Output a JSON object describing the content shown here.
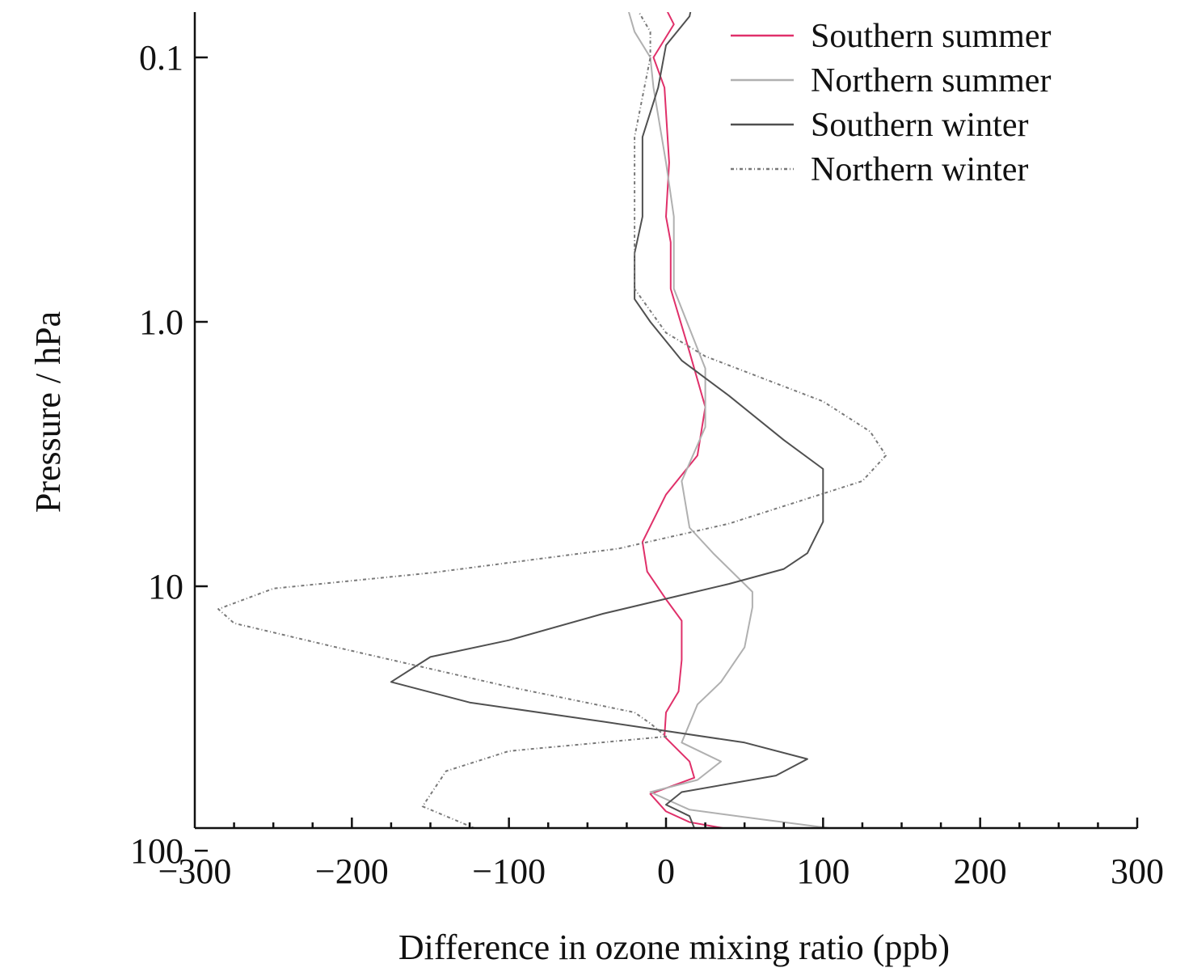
{
  "chart_data": {
    "type": "line",
    "xlabel": "Difference in ozone mixing ratio (ppb)",
    "ylabel": "Pressure / hPa",
    "xlim": [
      -300,
      300
    ],
    "ylim": [
      0.05,
      250
    ],
    "yscale": "log",
    "x_ticks": [
      -300,
      -200,
      -100,
      0,
      100,
      200,
      300
    ],
    "x_tick_labels": [
      "−300",
      "−200",
      "−100",
      "0",
      "100",
      "200",
      "300"
    ],
    "y_ticks": [
      0.1,
      1.0,
      10,
      100
    ],
    "y_tick_labels": [
      "0.1",
      "1.0",
      "10",
      "100"
    ],
    "grid": false,
    "legend_position": "top-right",
    "series": [
      {
        "name": "Southern summer",
        "color": "#e0306a",
        "dash": "solid",
        "points": [
          [
            -10,
            0.05
          ],
          [
            5,
            0.075
          ],
          [
            -8,
            0.1
          ],
          [
            -1,
            0.13
          ],
          [
            2,
            0.25
          ],
          [
            0,
            0.4
          ],
          [
            3,
            0.5
          ],
          [
            3,
            0.75
          ],
          [
            15,
            1.3
          ],
          [
            25,
            2.1
          ],
          [
            20,
            3.2
          ],
          [
            0,
            4.5
          ],
          [
            -15,
            6.8
          ],
          [
            -12,
            8.8
          ],
          [
            0,
            11.2
          ],
          [
            10,
            13.5
          ],
          [
            10,
            19
          ],
          [
            8,
            25
          ],
          [
            0,
            30
          ],
          [
            -1,
            37
          ],
          [
            15,
            46
          ],
          [
            18,
            53
          ],
          [
            -10,
            61
          ],
          [
            0,
            71
          ],
          [
            15,
            78
          ],
          [
            60,
            87
          ],
          [
            100,
            97
          ],
          [
            95,
            105
          ],
          [
            50,
            126
          ],
          [
            20,
            145
          ],
          [
            10,
            180
          ],
          [
            0,
            210
          ],
          [
            -10,
            240
          ]
        ]
      },
      {
        "name": "Northern summer",
        "color": "#b0b0b0",
        "dash": "solid",
        "points": [
          [
            -30,
            0.05
          ],
          [
            -20,
            0.08
          ],
          [
            -10,
            0.1
          ],
          [
            -8,
            0.13
          ],
          [
            0,
            0.25
          ],
          [
            5,
            0.4
          ],
          [
            5,
            0.75
          ],
          [
            25,
            1.5
          ],
          [
            25,
            2.5
          ],
          [
            10,
            4.0
          ],
          [
            15,
            6.0
          ],
          [
            30,
            7.5
          ],
          [
            55,
            10.5
          ],
          [
            55,
            12
          ],
          [
            50,
            17
          ],
          [
            35,
            23
          ],
          [
            20,
            28
          ],
          [
            10,
            39
          ],
          [
            35,
            46
          ],
          [
            20,
            54
          ],
          [
            -10,
            60
          ],
          [
            15,
            70
          ],
          [
            60,
            76
          ],
          [
            110,
            83
          ],
          [
            125,
            95
          ],
          [
            90,
            107
          ],
          [
            40,
            128
          ],
          [
            0,
            165
          ],
          [
            -10,
            200
          ],
          [
            -15,
            240
          ]
        ]
      },
      {
        "name": "Southern winter",
        "color": "#505050",
        "dash": "solid",
        "points": [
          [
            20,
            0.05
          ],
          [
            15,
            0.07
          ],
          [
            0,
            0.09
          ],
          [
            -5,
            0.13
          ],
          [
            -15,
            0.2
          ],
          [
            -15,
            0.4
          ],
          [
            -20,
            0.55
          ],
          [
            -20,
            0.82
          ],
          [
            -10,
            1.0
          ],
          [
            10,
            1.4
          ],
          [
            40,
            1.9
          ],
          [
            75,
            2.8
          ],
          [
            100,
            3.6
          ],
          [
            100,
            5.7
          ],
          [
            90,
            7.5
          ],
          [
            75,
            8.6
          ],
          [
            40,
            9.8
          ],
          [
            10,
            10.8
          ],
          [
            -40,
            12.7
          ],
          [
            -100,
            16
          ],
          [
            -150,
            18.5
          ],
          [
            -175,
            23
          ],
          [
            -125,
            27.5
          ],
          [
            -40,
            32.5
          ],
          [
            50,
            39
          ],
          [
            90,
            45
          ],
          [
            70,
            52
          ],
          [
            10,
            60
          ],
          [
            0,
            67
          ],
          [
            15,
            74
          ],
          [
            20,
            88
          ],
          [
            25,
            103
          ],
          [
            15,
            120
          ],
          [
            10,
            160
          ],
          [
            15,
            200
          ],
          [
            5,
            240
          ]
        ]
      },
      {
        "name": "Northern winter",
        "color": "#787878",
        "dash": "4,3,1,3",
        "points": [
          [
            -30,
            0.05
          ],
          [
            -10,
            0.08
          ],
          [
            -10,
            0.1
          ],
          [
            -20,
            0.2
          ],
          [
            -20,
            0.4
          ],
          [
            -20,
            0.75
          ],
          [
            0,
            1.1
          ],
          [
            25,
            1.35
          ],
          [
            100,
            2.0
          ],
          [
            130,
            2.6
          ],
          [
            140,
            3.2
          ],
          [
            125,
            4.0
          ],
          [
            40,
            5.8
          ],
          [
            -30,
            7.2
          ],
          [
            -150,
            8.9
          ],
          [
            -250,
            10.2
          ],
          [
            -285,
            12.2
          ],
          [
            -275,
            13.8
          ],
          [
            -210,
            17
          ],
          [
            -100,
            24
          ],
          [
            -20,
            30
          ],
          [
            -10,
            33
          ],
          [
            0,
            37
          ],
          [
            -100,
            42
          ],
          [
            -140,
            50
          ],
          [
            -155,
            68
          ],
          [
            -110,
            88
          ],
          [
            -50,
            115
          ],
          [
            -30,
            150
          ],
          [
            -10,
            210
          ],
          [
            0,
            250
          ]
        ]
      }
    ]
  }
}
